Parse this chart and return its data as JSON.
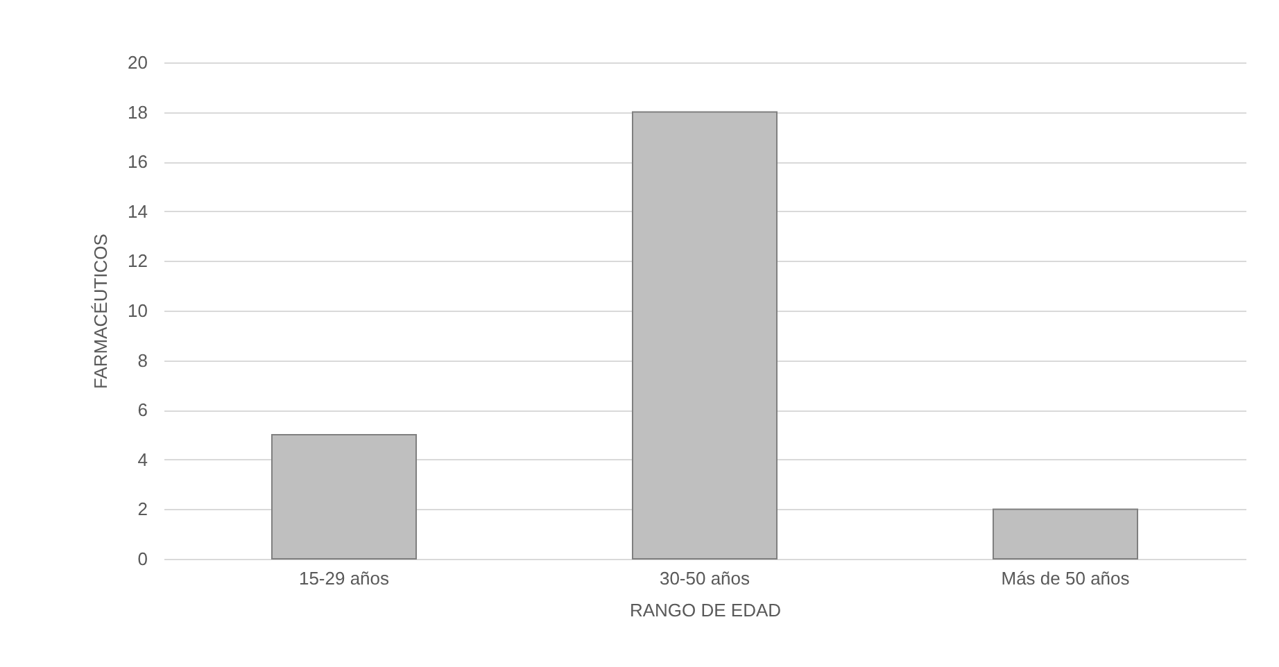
{
  "chart_data": {
    "type": "bar",
    "xlabel": "RANGO DE EDAD",
    "ylabel": "FARMACÉUTICOS",
    "categories": [
      "15-29 años",
      "30-50 años",
      "Más de 50 años"
    ],
    "values": [
      5,
      18,
      2
    ],
    "color": "#bfbfbf",
    "ylim": [
      0,
      20
    ],
    "yticks": [
      0,
      2,
      4,
      6,
      8,
      10,
      12,
      14,
      16,
      18,
      20
    ],
    "grid": "y"
  }
}
